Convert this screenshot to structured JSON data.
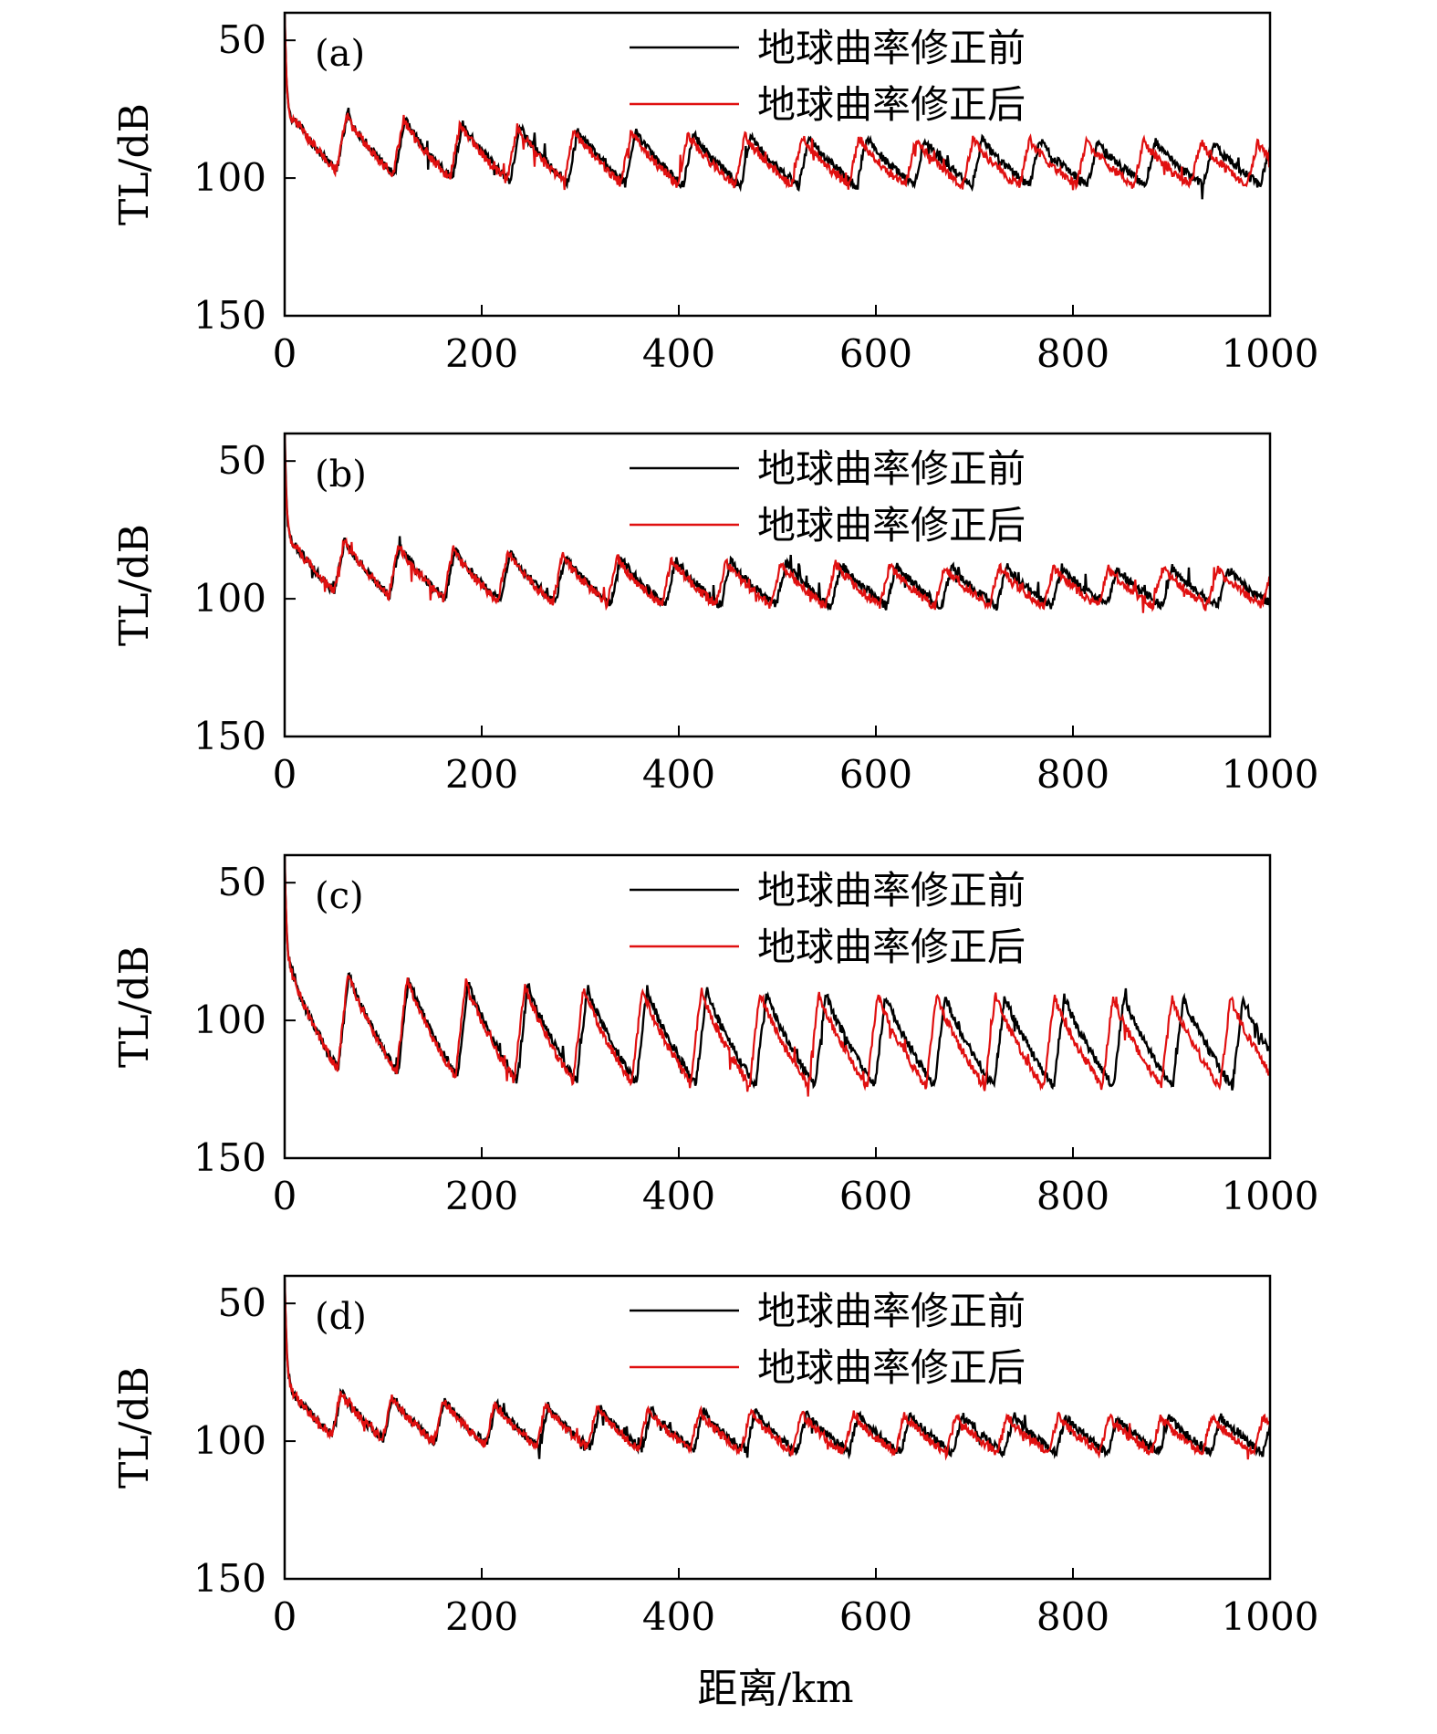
{
  "chart_data": [
    {
      "type": "line",
      "panel_label": "(a)",
      "xlabel": "",
      "ylabel": "TL/dB",
      "xlim": [
        0,
        1000
      ],
      "ylim": [
        150,
        40
      ],
      "y_inverted": true,
      "xticks": [
        0,
        200,
        400,
        600,
        800,
        1000
      ],
      "yticks": [
        50,
        100,
        150
      ],
      "legend": "top-right",
      "series": [
        {
          "name": "地球曲率修正前",
          "color": "#000000",
          "period": 58.6,
          "base": 95,
          "amp": 10,
          "decay": 0.4,
          "lag": 0
        },
        {
          "name": "地球曲率修正后",
          "color": "#e01010",
          "period": 57.8,
          "base": 95,
          "amp": 10,
          "decay": 0.4,
          "lag": 0
        }
      ]
    },
    {
      "type": "line",
      "panel_label": "(b)",
      "xlabel": "",
      "ylabel": "TL/dB",
      "xlim": [
        0,
        1000
      ],
      "ylim": [
        150,
        40
      ],
      "y_inverted": true,
      "xticks": [
        0,
        200,
        400,
        600,
        800,
        1000
      ],
      "yticks": [
        50,
        100,
        150
      ],
      "legend": "top-right",
      "series": [
        {
          "name": "地球曲率修正前",
          "color": "#000000",
          "period": 56.0,
          "base": 96,
          "amp": 9,
          "decay": 0.55,
          "lag": 0
        },
        {
          "name": "地球曲率修正后",
          "color": "#e01010",
          "period": 55.4,
          "base": 96,
          "amp": 9,
          "decay": 0.55,
          "lag": 0
        }
      ]
    },
    {
      "type": "line",
      "panel_label": "(c)",
      "xlabel": "",
      "ylabel": "TL/dB",
      "xlim": [
        0,
        1000
      ],
      "ylim": [
        150,
        40
      ],
      "y_inverted": true,
      "xticks": [
        0,
        200,
        400,
        600,
        800,
        1000
      ],
      "yticks": [
        50,
        100,
        150
      ],
      "legend": "top-right",
      "series": [
        {
          "name": "地球曲率修正前",
          "color": "#000000",
          "period": 60.5,
          "base": 108,
          "amp": 18,
          "decay": 0.1,
          "lag": 0
        },
        {
          "name": "地球曲率修正后",
          "color": "#e01010",
          "period": 59.7,
          "base": 108,
          "amp": 18,
          "decay": 0.1,
          "lag": 0
        }
      ]
    },
    {
      "type": "line",
      "panel_label": "(d)",
      "xlabel": "距离/km",
      "ylabel": "TL/dB",
      "xlim": [
        0,
        1000
      ],
      "ylim": [
        150,
        40
      ],
      "y_inverted": true,
      "xticks": [
        0,
        200,
        400,
        600,
        800,
        1000
      ],
      "yticks": [
        50,
        100,
        150
      ],
      "legend": "top-right",
      "series": [
        {
          "name": "地球曲率修正前",
          "color": "#000000",
          "period": 52.5,
          "base": 98,
          "amp": 7,
          "decay": 0.3,
          "lag": 0
        },
        {
          "name": "地球曲率修正后",
          "color": "#e01010",
          "period": 52.0,
          "base": 98,
          "amp": 7,
          "decay": 0.3,
          "lag": 0
        }
      ]
    }
  ]
}
